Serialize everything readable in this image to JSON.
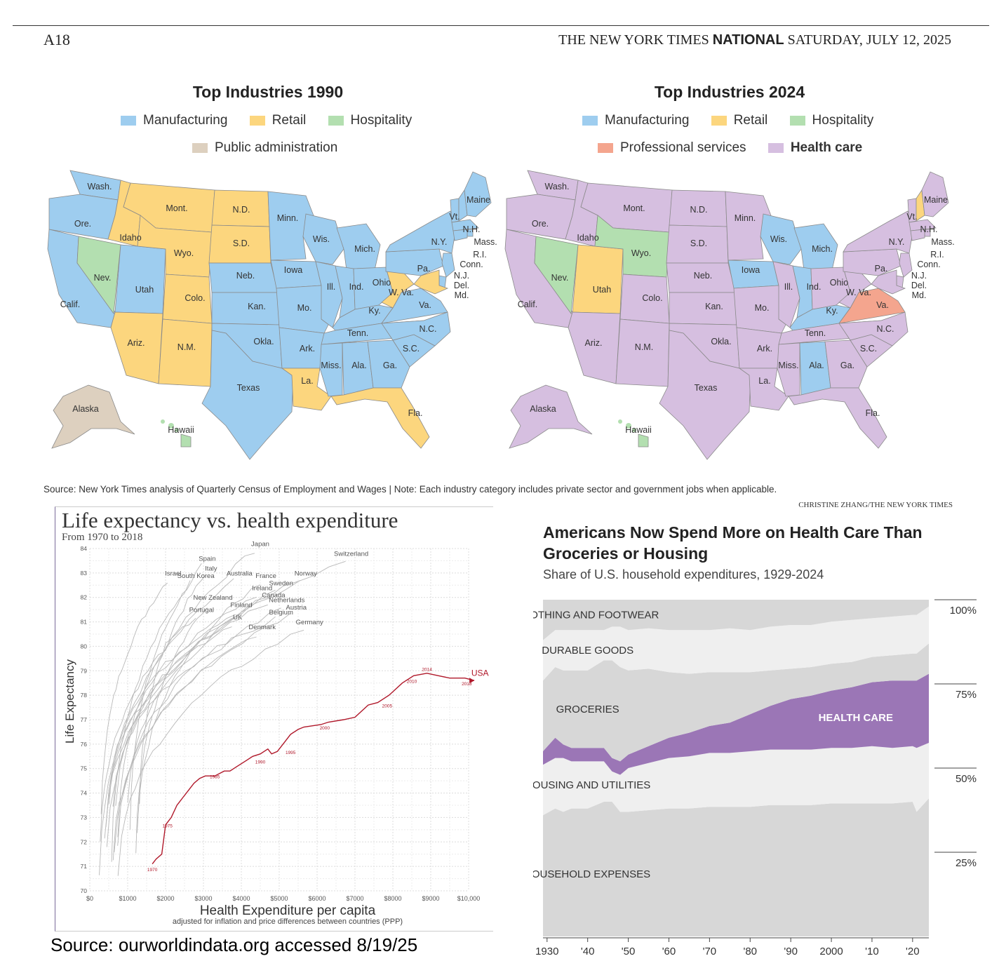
{
  "header": {
    "page_number": "A18",
    "paper": "THE NEW YORK TIMES",
    "section": "NATIONAL",
    "date": "SATURDAY, JULY 12, 2025"
  },
  "colors": {
    "manufacturing": "#9ecdef",
    "retail": "#fcd67e",
    "hospitality": "#b3dfb0",
    "public_administration": "#ddd0bf",
    "professional_services": "#f4a58e",
    "health_care": "#d6bfe0",
    "usa_line": "#b0182a",
    "stack_dark": "#d7d7d7",
    "stack_light": "#efefef",
    "stack_health": "#9b76b6"
  },
  "map_1990": {
    "title": "Top Industries 1990",
    "legend": [
      "Manufacturing",
      "Retail",
      "Hospitality",
      "Public administration"
    ],
    "states": [
      {
        "label": "Wash.",
        "industry": "manufacturing"
      },
      {
        "label": "Ore.",
        "industry": "manufacturing"
      },
      {
        "label": "Calif.",
        "industry": "manufacturing"
      },
      {
        "label": "Idaho",
        "industry": "retail"
      },
      {
        "label": "Nev.",
        "industry": "hospitality"
      },
      {
        "label": "Utah",
        "industry": "manufacturing"
      },
      {
        "label": "Ariz.",
        "industry": "retail"
      },
      {
        "label": "Mont.",
        "industry": "retail"
      },
      {
        "label": "Wyo.",
        "industry": "retail"
      },
      {
        "label": "Colo.",
        "industry": "retail"
      },
      {
        "label": "N.M.",
        "industry": "retail"
      },
      {
        "label": "N.D.",
        "industry": "retail"
      },
      {
        "label": "S.D.",
        "industry": "retail"
      },
      {
        "label": "Neb.",
        "industry": "manufacturing"
      },
      {
        "label": "Kan.",
        "industry": "manufacturing"
      },
      {
        "label": "Okla.",
        "industry": "manufacturing"
      },
      {
        "label": "Texas",
        "industry": "manufacturing"
      },
      {
        "label": "Minn.",
        "industry": "manufacturing"
      },
      {
        "label": "Iowa",
        "industry": "manufacturing"
      },
      {
        "label": "Mo.",
        "industry": "manufacturing"
      },
      {
        "label": "Ark.",
        "industry": "manufacturing"
      },
      {
        "label": "La.",
        "industry": "retail"
      },
      {
        "label": "Wis.",
        "industry": "manufacturing"
      },
      {
        "label": "Ill.",
        "industry": "manufacturing"
      },
      {
        "label": "Mich.",
        "industry": "manufacturing"
      },
      {
        "label": "Ind.",
        "industry": "manufacturing"
      },
      {
        "label": "Ohio",
        "industry": "manufacturing"
      },
      {
        "label": "Ky.",
        "industry": "manufacturing"
      },
      {
        "label": "Tenn.",
        "industry": "manufacturing"
      },
      {
        "label": "Miss.",
        "industry": "manufacturing"
      },
      {
        "label": "Ala.",
        "industry": "manufacturing"
      },
      {
        "label": "Ga.",
        "industry": "manufacturing"
      },
      {
        "label": "Fla.",
        "industry": "retail"
      },
      {
        "label": "S.C.",
        "industry": "manufacturing"
      },
      {
        "label": "N.C.",
        "industry": "manufacturing"
      },
      {
        "label": "Va.",
        "industry": "manufacturing"
      },
      {
        "label": "W. Va.",
        "industry": "retail"
      },
      {
        "label": "Pa.",
        "industry": "manufacturing"
      },
      {
        "label": "N.Y.",
        "industry": "manufacturing"
      },
      {
        "label": "Vt.",
        "industry": "manufacturing"
      },
      {
        "label": "N.H.",
        "industry": "manufacturing"
      },
      {
        "label": "Maine",
        "industry": "manufacturing"
      },
      {
        "label": "Mass.",
        "industry": "manufacturing"
      },
      {
        "label": "R.I.",
        "industry": "manufacturing"
      },
      {
        "label": "Conn.",
        "industry": "manufacturing"
      },
      {
        "label": "N.J.",
        "industry": "manufacturing"
      },
      {
        "label": "Del.",
        "industry": "manufacturing"
      },
      {
        "label": "Md.",
        "industry": "retail"
      },
      {
        "label": "Alaska",
        "industry": "public_administration"
      },
      {
        "label": "Hawaii",
        "industry": "hospitality"
      }
    ]
  },
  "map_2024": {
    "title": "Top Industries 2024",
    "legend": [
      "Manufacturing",
      "Retail",
      "Hospitality",
      "Professional services",
      "Health care"
    ],
    "states": [
      {
        "label": "Wash.",
        "industry": "health_care"
      },
      {
        "label": "Ore.",
        "industry": "health_care"
      },
      {
        "label": "Calif.",
        "industry": "health_care"
      },
      {
        "label": "Idaho",
        "industry": "health_care"
      },
      {
        "label": "Nev.",
        "industry": "hospitality"
      },
      {
        "label": "Utah",
        "industry": "retail"
      },
      {
        "label": "Ariz.",
        "industry": "health_care"
      },
      {
        "label": "Mont.",
        "industry": "health_care"
      },
      {
        "label": "Wyo.",
        "industry": "hospitality"
      },
      {
        "label": "Colo.",
        "industry": "health_care"
      },
      {
        "label": "N.M.",
        "industry": "health_care"
      },
      {
        "label": "N.D.",
        "industry": "health_care"
      },
      {
        "label": "S.D.",
        "industry": "health_care"
      },
      {
        "label": "Neb.",
        "industry": "health_care"
      },
      {
        "label": "Kan.",
        "industry": "health_care"
      },
      {
        "label": "Okla.",
        "industry": "health_care"
      },
      {
        "label": "Texas",
        "industry": "health_care"
      },
      {
        "label": "Minn.",
        "industry": "health_care"
      },
      {
        "label": "Iowa",
        "industry": "manufacturing"
      },
      {
        "label": "Mo.",
        "industry": "health_care"
      },
      {
        "label": "Ark.",
        "industry": "health_care"
      },
      {
        "label": "La.",
        "industry": "health_care"
      },
      {
        "label": "Wis.",
        "industry": "manufacturing"
      },
      {
        "label": "Ill.",
        "industry": "health_care"
      },
      {
        "label": "Mich.",
        "industry": "manufacturing"
      },
      {
        "label": "Ind.",
        "industry": "manufacturing"
      },
      {
        "label": "Ohio",
        "industry": "health_care"
      },
      {
        "label": "Ky.",
        "industry": "manufacturing"
      },
      {
        "label": "Tenn.",
        "industry": "health_care"
      },
      {
        "label": "Miss.",
        "industry": "health_care"
      },
      {
        "label": "Ala.",
        "industry": "manufacturing"
      },
      {
        "label": "Ga.",
        "industry": "health_care"
      },
      {
        "label": "Fla.",
        "industry": "health_care"
      },
      {
        "label": "S.C.",
        "industry": "health_care"
      },
      {
        "label": "N.C.",
        "industry": "health_care"
      },
      {
        "label": "Va.",
        "industry": "professional_services"
      },
      {
        "label": "W. Va.",
        "industry": "health_care"
      },
      {
        "label": "Pa.",
        "industry": "health_care"
      },
      {
        "label": "N.Y.",
        "industry": "health_care"
      },
      {
        "label": "Vt.",
        "industry": "health_care"
      },
      {
        "label": "N.H.",
        "industry": "retail"
      },
      {
        "label": "Maine",
        "industry": "health_care"
      },
      {
        "label": "Mass.",
        "industry": "health_care"
      },
      {
        "label": "R.I.",
        "industry": "health_care"
      },
      {
        "label": "Conn.",
        "industry": "health_care"
      },
      {
        "label": "N.J.",
        "industry": "health_care"
      },
      {
        "label": "Del.",
        "industry": "health_care"
      },
      {
        "label": "Md.",
        "industry": "health_care"
      },
      {
        "label": "Alaska",
        "industry": "health_care"
      },
      {
        "label": "Hawaii",
        "industry": "hospitality"
      }
    ]
  },
  "map_source": "Source: New York Times analysis of Quarterly Census of Employment and Wages | Note: Each industry category includes private sector and government jobs when applicable.",
  "map_credit": "CHRISTINE ZHANG/THE NEW YORK TIMES",
  "life_expectancy": {
    "title": "Life expectancy vs. health expenditure",
    "subtitle": "From 1970 to 2018",
    "x_title": "Health Expenditure per capita",
    "x_subtitle": "adjusted for inflation and price differences between countries (PPP)",
    "y_title": "Life Expectancy",
    "source": "Source: ourworldindata.org accessed 8/19/25"
  },
  "health_share": {
    "title": "Americans Now Spend More on Health Care Than Groceries or Housing",
    "subtitle": "Share of U.S. household expenditures, 1929-2024"
  },
  "chart_data": [
    {
      "type": "line",
      "title": "Life expectancy vs. health expenditure",
      "subtitle": "From 1970 to 2018",
      "xlabel": "Health Expenditure per capita",
      "ylabel": "Life Expectancy",
      "xlim": [
        0,
        10000
      ],
      "ylim": [
        70,
        84
      ],
      "x_ticks": [
        "$0",
        "$1000",
        "$2000",
        "$3000",
        "$4000",
        "$5000",
        "$6000",
        "$7000",
        "$8000",
        "$9000",
        "$10,000"
      ],
      "y_ticks": [
        "70",
        "71",
        "72",
        "73",
        "74",
        "75",
        "76",
        "77",
        "78",
        "79",
        "80",
        "81",
        "82",
        "83",
        "84"
      ],
      "series": [
        {
          "name": "USA",
          "x": [
            1650,
            1750,
            1900,
            2000,
            2150,
            2300,
            2450,
            2600,
            2750,
            2900,
            3050,
            3300,
            3550,
            3700,
            3900,
            4100,
            4300,
            4500,
            4700,
            4800,
            4950,
            5150,
            5300,
            5500,
            5650,
            6100,
            6300,
            6700,
            7000,
            7350,
            7600,
            7900,
            8250,
            8550,
            8900,
            9200,
            9500,
            9900,
            10150
          ],
          "y": [
            71.1,
            71.3,
            71.5,
            72.7,
            73.0,
            73.5,
            73.8,
            74.1,
            74.4,
            74.6,
            74.7,
            74.7,
            74.9,
            74.9,
            75.1,
            75.3,
            75.5,
            75.6,
            75.8,
            75.6,
            75.7,
            76.1,
            76.4,
            76.6,
            76.7,
            76.8,
            76.9,
            77.0,
            77.1,
            77.6,
            77.7,
            78.0,
            78.5,
            78.8,
            78.9,
            78.8,
            78.7,
            78.7,
            78.6
          ]
        }
      ],
      "point_labels": [
        {
          "text": "1970",
          "x": 1650,
          "y": 70.8
        },
        {
          "text": "1975",
          "x": 2050,
          "y": 72.6
        },
        {
          "text": "1985",
          "x": 3300,
          "y": 74.6
        },
        {
          "text": "1990",
          "x": 4500,
          "y": 75.2
        },
        {
          "text": "1995",
          "x": 5300,
          "y": 75.6
        },
        {
          "text": "2000",
          "x": 6200,
          "y": 76.6
        },
        {
          "text": "2005",
          "x": 7850,
          "y": 77.5
        },
        {
          "text": "2010",
          "x": 8500,
          "y": 78.5
        },
        {
          "text": "2014",
          "x": 8900,
          "y": 79.0
        },
        {
          "text": "2018",
          "x": 9950,
          "y": 78.4
        }
      ],
      "series_label": {
        "text": "USA",
        "x": 10300,
        "y": 78.8
      },
      "country_labels": [
        {
          "text": "Japan",
          "x": 4500,
          "y": 84.1
        },
        {
          "text": "Switzerland",
          "x": 6900,
          "y": 83.7
        },
        {
          "text": "Spain",
          "x": 3100,
          "y": 83.5
        },
        {
          "text": "Italy",
          "x": 3200,
          "y": 83.1
        },
        {
          "text": "Israel",
          "x": 2200,
          "y": 82.9
        },
        {
          "text": "South Korea",
          "x": 2800,
          "y": 82.8
        },
        {
          "text": "Australia",
          "x": 3950,
          "y": 82.9
        },
        {
          "text": "France",
          "x": 4650,
          "y": 82.8
        },
        {
          "text": "Norway",
          "x": 5700,
          "y": 82.9
        },
        {
          "text": "Sweden",
          "x": 5050,
          "y": 82.5
        },
        {
          "text": "Ireland",
          "x": 4550,
          "y": 82.3
        },
        {
          "text": "Canada",
          "x": 4850,
          "y": 82.0
        },
        {
          "text": "New Zealand",
          "x": 3250,
          "y": 81.9
        },
        {
          "text": "Netherlands",
          "x": 5200,
          "y": 81.8
        },
        {
          "text": "Finland",
          "x": 4000,
          "y": 81.6
        },
        {
          "text": "Austria",
          "x": 5450,
          "y": 81.5
        },
        {
          "text": "Portugal",
          "x": 2950,
          "y": 81.4
        },
        {
          "text": "Belgium",
          "x": 5050,
          "y": 81.3
        },
        {
          "text": "UK",
          "x": 3900,
          "y": 81.1
        },
        {
          "text": "Germany",
          "x": 5800,
          "y": 80.9
        },
        {
          "text": "Denmark",
          "x": 4550,
          "y": 80.7
        }
      ]
    },
    {
      "type": "area",
      "title": "Americans Now Spend More on Health Care Than Groceries or Housing",
      "subtitle": "Share of U.S. household expenditures, 1929-2024",
      "xlim": [
        1929,
        2024
      ],
      "ylim": [
        0,
        100
      ],
      "x_ticks": [
        "1930",
        "'40",
        "'50",
        "'60",
        "'70",
        "'80",
        "'90",
        "2000",
        "'10",
        "'20"
      ],
      "x_tick_values": [
        1930,
        1940,
        1950,
        1960,
        1970,
        1980,
        1990,
        2000,
        2010,
        2020
      ],
      "y_ticks": [
        "25%",
        "50%",
        "75%",
        "100%"
      ],
      "y_tick_values": [
        25,
        50,
        75,
        100
      ],
      "x": [
        1929,
        1932,
        1934,
        1936,
        1940,
        1944,
        1946,
        1948,
        1950,
        1955,
        1960,
        1965,
        1970,
        1975,
        1980,
        1985,
        1990,
        1995,
        2000,
        2005,
        2010,
        2015,
        2020,
        2021,
        2024
      ],
      "series": [
        {
          "name": "OTHER HOUSEHOLD EXPENSES",
          "values": [
            36,
            38,
            37,
            38,
            38,
            40,
            40,
            37,
            37,
            37.5,
            38,
            38,
            38.5,
            38.5,
            38.5,
            39,
            39,
            39,
            39.5,
            39.5,
            39.5,
            39.5,
            40,
            37,
            41
          ]
        },
        {
          "name": "HOUSING AND UTILITIES",
          "values": [
            15,
            15,
            16,
            14,
            14,
            12,
            9,
            11,
            13,
            14,
            15,
            15.5,
            16,
            16,
            16.5,
            16.5,
            16.5,
            16.5,
            16.5,
            16.5,
            17,
            16.5,
            16.5,
            19,
            16.5
          ]
        },
        {
          "name": "HEALTH CARE",
          "values": [
            4,
            6,
            4,
            4,
            4,
            4,
            4,
            4,
            4,
            5,
            6,
            7,
            8,
            9,
            11,
            13,
            15,
            16,
            17,
            18,
            19,
            20,
            19.5,
            20,
            20.5
          ]
        },
        {
          "name": "GROCERIES",
          "values": [
            21,
            21,
            22,
            23,
            23,
            26,
            29,
            28,
            25,
            23,
            19.5,
            17.5,
            16,
            15,
            12.5,
            10.5,
            9,
            8.5,
            8,
            7.5,
            7.5,
            7.5,
            8,
            8,
            9
          ]
        },
        {
          "name": "DURABLE GOODS",
          "values": [
            12,
            11,
            12,
            12,
            12,
            9,
            10,
            12,
            12,
            12,
            12.5,
            13,
            12.5,
            13,
            12.5,
            13,
            13,
            12.5,
            12.5,
            12.5,
            11.5,
            11.5,
            11.5,
            11.5,
            11
          ]
        },
        {
          "name": "CLOTHING AND FOOTWEAR",
          "values": [
            12,
            9,
            9,
            9,
            9,
            9,
            8,
            8,
            9,
            8.5,
            9,
            9,
            9,
            8.5,
            9,
            8,
            7.5,
            7.5,
            6.5,
            6,
            5.5,
            5,
            4.5,
            4.5,
            2
          ]
        }
      ]
    }
  ]
}
